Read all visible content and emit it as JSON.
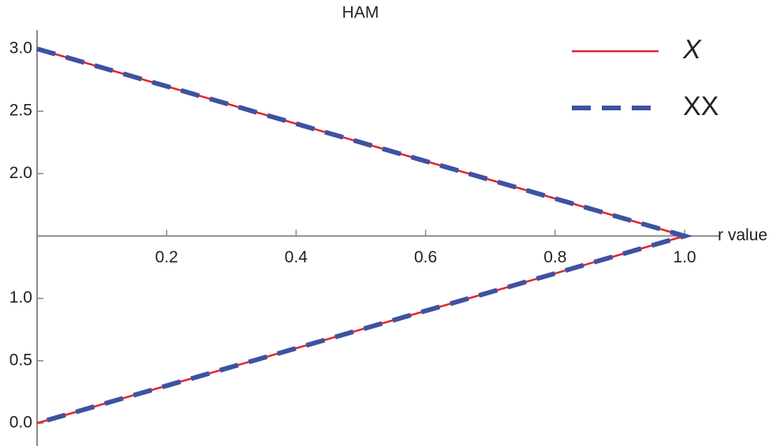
{
  "chart_data": {
    "type": "line",
    "title": "HAM",
    "x_label": "r value",
    "x": [
      0,
      1,
      0
    ],
    "series": [
      {
        "name": "X",
        "color": "#e0252b",
        "values": [
          3,
          1.5,
          0
        ],
        "dash": false
      },
      {
        "name": "XX",
        "color": "#3d52a1",
        "values": [
          3,
          1.5,
          0
        ],
        "dash": true
      }
    ],
    "xlim": [
      0,
      1.03
    ],
    "ylim": [
      -0.15,
      3.15
    ],
    "axis_origin_y": 1.5,
    "xticks": [
      0.2,
      0.4,
      0.6,
      0.8,
      {
        "value": 1,
        "label": "1.0"
      }
    ],
    "yticks": [
      {
        "value": 0,
        "label": "0.0"
      },
      0.5,
      {
        "value": 1,
        "label": "1.0"
      },
      {
        "value": 2,
        "label": "2.0"
      },
      2.5,
      {
        "value": 3,
        "label": "3.0"
      }
    ],
    "legend": "top-right",
    "grid": false
  }
}
